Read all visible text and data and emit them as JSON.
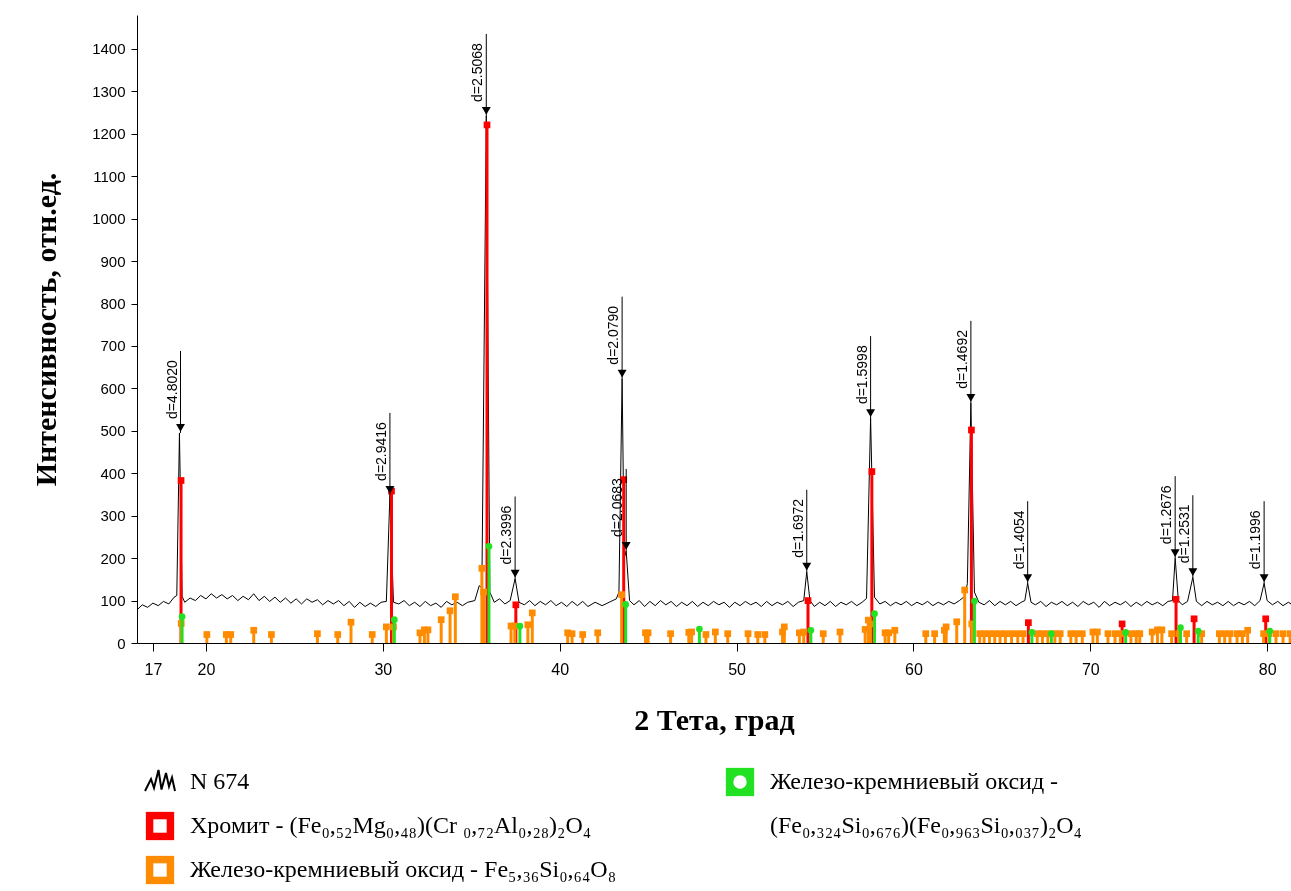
{
  "chart_data": {
    "type": "line",
    "xlabel": "2 Тета, град",
    "ylabel": "Интенсивность, отн.ед.",
    "xlim": [
      16.1,
      81.35
    ],
    "ylim": [
      0,
      1480
    ],
    "xticks": [
      17,
      20,
      30,
      40,
      50,
      60,
      70,
      80
    ],
    "yticks": [
      0,
      100,
      200,
      300,
      400,
      500,
      600,
      700,
      800,
      900,
      1000,
      1100,
      1200,
      1300,
      1400
    ],
    "legend": "bottom",
    "series": [
      {
        "name": "N 674",
        "color": "#000000",
        "x": [
          16.1,
          16.4,
          16.7,
          17.0,
          17.3,
          17.6,
          17.9,
          18.2,
          18.35,
          18.5,
          18.65,
          18.8,
          19.1,
          19.4,
          19.7,
          20.0,
          20.3,
          20.6,
          20.9,
          21.2,
          21.5,
          21.8,
          22.1,
          22.4,
          22.7,
          23.0,
          23.3,
          23.6,
          23.9,
          24.2,
          24.5,
          24.8,
          25.1,
          25.4,
          25.7,
          26.0,
          26.3,
          26.6,
          26.9,
          27.2,
          27.5,
          27.8,
          28.1,
          28.4,
          28.7,
          29.0,
          29.3,
          29.6,
          29.9,
          30.2,
          30.4,
          30.6,
          30.9,
          31.2,
          31.5,
          31.8,
          32.1,
          32.4,
          32.7,
          33.0,
          33.3,
          33.6,
          33.9,
          34.2,
          34.5,
          34.8,
          35.2,
          35.45,
          35.6,
          35.85,
          36.05,
          36.3,
          36.6,
          36.9,
          37.2,
          37.48,
          37.7,
          38.0,
          38.3,
          38.6,
          38.9,
          39.2,
          39.5,
          39.8,
          40.1,
          40.4,
          40.7,
          41.0,
          41.3,
          41.6,
          42.0,
          42.4,
          42.8,
          43.2,
          43.35,
          43.53,
          43.65,
          43.76,
          43.95,
          44.2,
          44.5,
          44.8,
          45.1,
          45.4,
          45.7,
          46.0,
          46.3,
          46.6,
          46.9,
          47.2,
          47.5,
          47.8,
          48.1,
          48.4,
          48.7,
          49.0,
          49.3,
          49.6,
          49.9,
          50.2,
          50.5,
          50.8,
          51.1,
          51.4,
          51.7,
          52.0,
          52.3,
          52.6,
          52.9,
          53.2,
          53.5,
          53.8,
          53.97,
          54.15,
          54.4,
          54.7,
          55.0,
          55.3,
          55.6,
          55.9,
          56.2,
          56.5,
          56.8,
          57.1,
          57.35,
          57.58,
          57.8,
          58.1,
          58.4,
          58.7,
          59.0,
          59.3,
          59.6,
          59.9,
          60.2,
          60.5,
          60.8,
          61.1,
          61.4,
          61.7,
          62.0,
          62.3,
          62.6,
          62.9,
          63.05,
          63.25,
          63.45,
          63.7,
          64.0,
          64.3,
          64.6,
          64.9,
          65.2,
          65.5,
          65.8,
          66.1,
          66.3,
          66.46,
          66.65,
          66.9,
          67.2,
          67.5,
          67.8,
          68.1,
          68.4,
          68.7,
          69.0,
          69.3,
          69.6,
          69.9,
          70.2,
          70.5,
          70.8,
          71.1,
          71.4,
          71.7,
          72.0,
          72.3,
          72.6,
          72.9,
          73.2,
          73.5,
          73.8,
          74.1,
          74.4,
          74.65,
          74.8,
          74.98,
          75.2,
          75.5,
          75.8,
          76.0,
          76.3,
          76.6,
          76.9,
          77.2,
          77.5,
          77.8,
          78.1,
          78.4,
          78.7,
          79.0,
          79.3,
          79.6,
          79.83,
          80.0,
          80.3,
          80.6,
          80.9,
          81.2,
          81.35
        ],
        "values": [
          78,
          90,
          84,
          94,
          88,
          98,
          92,
          108,
          112,
          495,
          110,
          96,
          106,
          100,
          112,
          104,
          116,
          106,
          114,
          104,
          112,
          100,
          110,
          102,
          116,
          100,
          110,
          98,
          108,
          96,
          106,
          94,
          104,
          92,
          104,
          96,
          102,
          90,
          100,
          92,
          100,
          88,
          98,
          84,
          96,
          86,
          94,
          86,
          96,
          98,
          349,
          96,
          92,
          100,
          88,
          96,
          86,
          98,
          88,
          94,
          84,
          98,
          90,
          96,
          88,
          96,
          100,
          135,
          130,
          1242,
          120,
          96,
          104,
          92,
          100,
          152,
          96,
          90,
          100,
          88,
          98,
          90,
          100,
          88,
          96,
          86,
          98,
          88,
          98,
          86,
          96,
          88,
          96,
          104,
          120,
          623,
          200,
          217,
          100,
          90,
          100,
          86,
          98,
          88,
          100,
          90,
          98,
          86,
          96,
          88,
          98,
          86,
          96,
          88,
          98,
          90,
          96,
          84,
          96,
          88,
          98,
          90,
          96,
          86,
          98,
          88,
          96,
          90,
          98,
          86,
          96,
          100,
          168,
          100,
          86,
          96,
          88,
          98,
          86,
          96,
          90,
          98,
          88,
          96,
          105,
          530,
          108,
          92,
          98,
          88,
          96,
          90,
          98,
          88,
          96,
          90,
          98,
          88,
          96,
          90,
          98,
          92,
          100,
          110,
          140,
          566,
          120,
          96,
          90,
          100,
          88,
          98,
          90,
          98,
          88,
          96,
          100,
          141,
          96,
          90,
          98,
          86,
          96,
          90,
          98,
          88,
          96,
          86,
          98,
          90,
          96,
          84,
          98,
          88,
          96,
          90,
          98,
          86,
          96,
          88,
          98,
          90,
          96,
          88,
          98,
          100,
          200,
          100,
          90,
          98,
          155,
          98,
          88,
          98,
          90,
          96,
          88,
          98,
          88,
          96,
          90,
          98,
          88,
          100,
          141,
          100,
          90,
          98,
          88,
          96,
          92
        ]
      },
      {
        "name": "Хромит - (Fe₀,₅₂Mg₀,₄₈)(Cr ₀,₇₂Al₀,₂₈)₂O₄",
        "type": "lollipop",
        "marker": "square",
        "color": "#ff0000",
        "x": [
          18.59,
          30.49,
          35.89,
          37.52,
          43.62,
          54.04,
          57.65,
          63.28,
          66.5,
          71.8,
          74.85,
          75.87,
          79.92
        ],
        "values": [
          383,
          358,
          1221,
          90,
          385,
          100,
          404,
          502,
          48,
          45,
          103,
          57,
          57
        ]
      },
      {
        "name": "Железо-кремниевый оксид - Fe₅,₃₆Si₀,₆₄O₈",
        "type": "lollipop",
        "marker": "square",
        "color": "#ff8c00",
        "x": [
          18.6,
          20.05,
          21.15,
          21.4,
          22.7,
          23.7,
          26.3,
          27.45,
          28.2,
          29.4,
          30.2,
          30.6,
          32.1,
          32.35,
          32.55,
          33.3,
          33.8,
          34.1,
          35.6,
          35.7,
          37.25,
          37.46,
          38.2,
          38.45,
          40.45,
          40.7,
          41.3,
          42.15,
          43.5,
          44.85,
          45.0,
          46.27,
          47.3,
          47.46,
          48.27,
          48.8,
          49.5,
          50.65,
          51.2,
          51.6,
          52.6,
          52.7,
          53.55,
          53.8,
          54.9,
          55.85,
          57.27,
          57.45,
          57.57,
          58.4,
          58.6,
          58.95,
          60.7,
          61.2,
          61.75,
          61.85,
          62.45,
          62.9,
          63.3,
          63.75,
          64.0,
          64.3,
          64.6,
          64.9,
          65.2,
          65.55,
          65.9,
          66.2,
          67.0,
          67.3,
          67.6,
          68.0,
          68.3,
          68.9,
          69.2,
          69.55,
          70.15,
          70.4,
          71.0,
          71.4,
          71.7,
          72.3,
          72.6,
          72.8,
          73.5,
          73.8,
          74.05,
          74.6,
          75.0,
          75.45,
          76.3,
          77.3,
          77.6,
          77.9,
          78.3,
          78.6,
          78.9,
          79.8,
          80.1,
          80.5,
          80.9,
          81.3
        ],
        "values": [
          46,
          20,
          20,
          20,
          30,
          20,
          22,
          20,
          49,
          20,
          38,
          38,
          24,
          31,
          31,
          55,
          76,
          109,
          176,
          120,
          40,
          40,
          43,
          71,
          24,
          22,
          20,
          24,
          114,
          24,
          24,
          22,
          25,
          26,
          20,
          26,
          22,
          22,
          20,
          20,
          26,
          38,
          24,
          26,
          22,
          26,
          32,
          54,
          45,
          24,
          24,
          30,
          22,
          22,
          30,
          38,
          50,
          125,
          45,
          22,
          22,
          22,
          22,
          22,
          22,
          22,
          22,
          22,
          22,
          22,
          22,
          22,
          22,
          22,
          22,
          22,
          26,
          26,
          22,
          22,
          22,
          22,
          22,
          22,
          26,
          31,
          31,
          22,
          22,
          22,
          22,
          22,
          22,
          22,
          22,
          22,
          30,
          22,
          22,
          22,
          22,
          22
        ]
      },
      {
        "name": "Железо-кремниевый оксид - (Fe₀,₃₂₄Si₀,₆₇₆)(Fe₀,₉₆₃Si₀,₀₃₇)₂O₄",
        "type": "lollipop",
        "marker": "circle",
        "color": "#22e022",
        "x": [
          18.65,
          30.65,
          36.0,
          37.75,
          43.73,
          47.9,
          54.2,
          57.8,
          63.45,
          66.7,
          67.8,
          72.0,
          75.1,
          76.1,
          80.15
        ],
        "values": [
          62,
          55,
          228,
          40,
          91,
          33,
          30,
          69,
          99,
          25,
          22,
          25,
          36,
          28,
          28
        ]
      }
    ],
    "annotations": [
      {
        "text": "d=4.8020",
        "x": 18.56,
        "y": 495
      },
      {
        "text": "d=2.9416",
        "x": 30.4,
        "y": 349
      },
      {
        "text": "d=2.5068",
        "x": 35.85,
        "y": 1242
      },
      {
        "text": "d=2.3996",
        "x": 37.48,
        "y": 152
      },
      {
        "text": "d=2.0790",
        "x": 43.53,
        "y": 623
      },
      {
        "text": "d=2.0683",
        "x": 43.76,
        "y": 217
      },
      {
        "text": "d=1.6972",
        "x": 53.97,
        "y": 168
      },
      {
        "text": "d=1.5998",
        "x": 57.58,
        "y": 530
      },
      {
        "text": "d=1.4692",
        "x": 63.25,
        "y": 566
      },
      {
        "text": "d=1.4054",
        "x": 66.46,
        "y": 141
      },
      {
        "text": "d=1.2676",
        "x": 74.8,
        "y": 200
      },
      {
        "text": "d=1.2531",
        "x": 75.8,
        "y": 155
      },
      {
        "text": "d=1.1996",
        "x": 79.83,
        "y": 141
      }
    ]
  }
}
